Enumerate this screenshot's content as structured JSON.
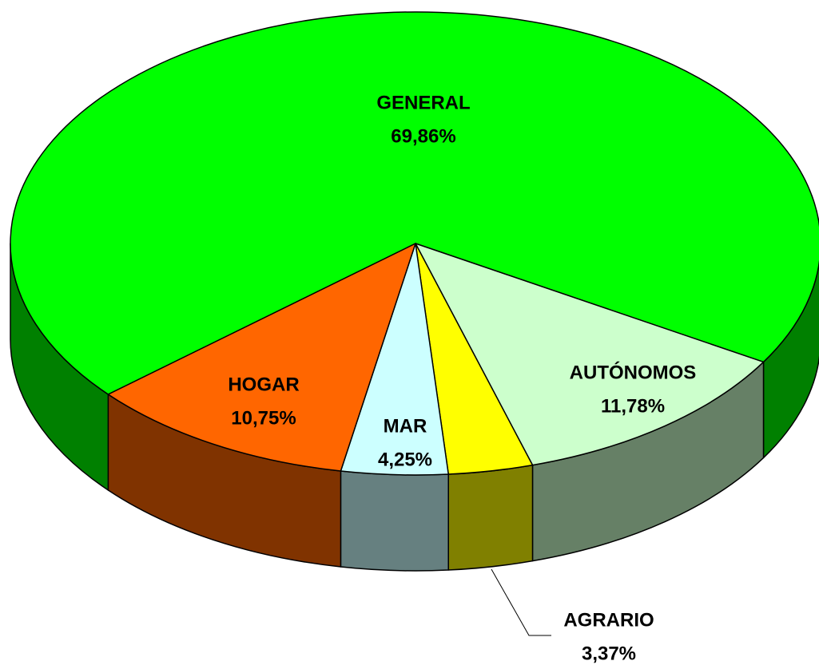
{
  "chart_data": {
    "type": "pie3d",
    "categories": [
      "GENERAL",
      "AUTÓNOMOS",
      "AGRARIO",
      "MAR",
      "HOGAR"
    ],
    "values": [
      69.86,
      11.78,
      3.37,
      4.25,
      10.75
    ],
    "value_labels": [
      "69,86%",
      "11,78%",
      "3,37%",
      "4,25%",
      "10,75%"
    ],
    "colors": [
      "#00ff00",
      "#ccffcc",
      "#ffff00",
      "#ccffff",
      "#ff6600"
    ]
  }
}
